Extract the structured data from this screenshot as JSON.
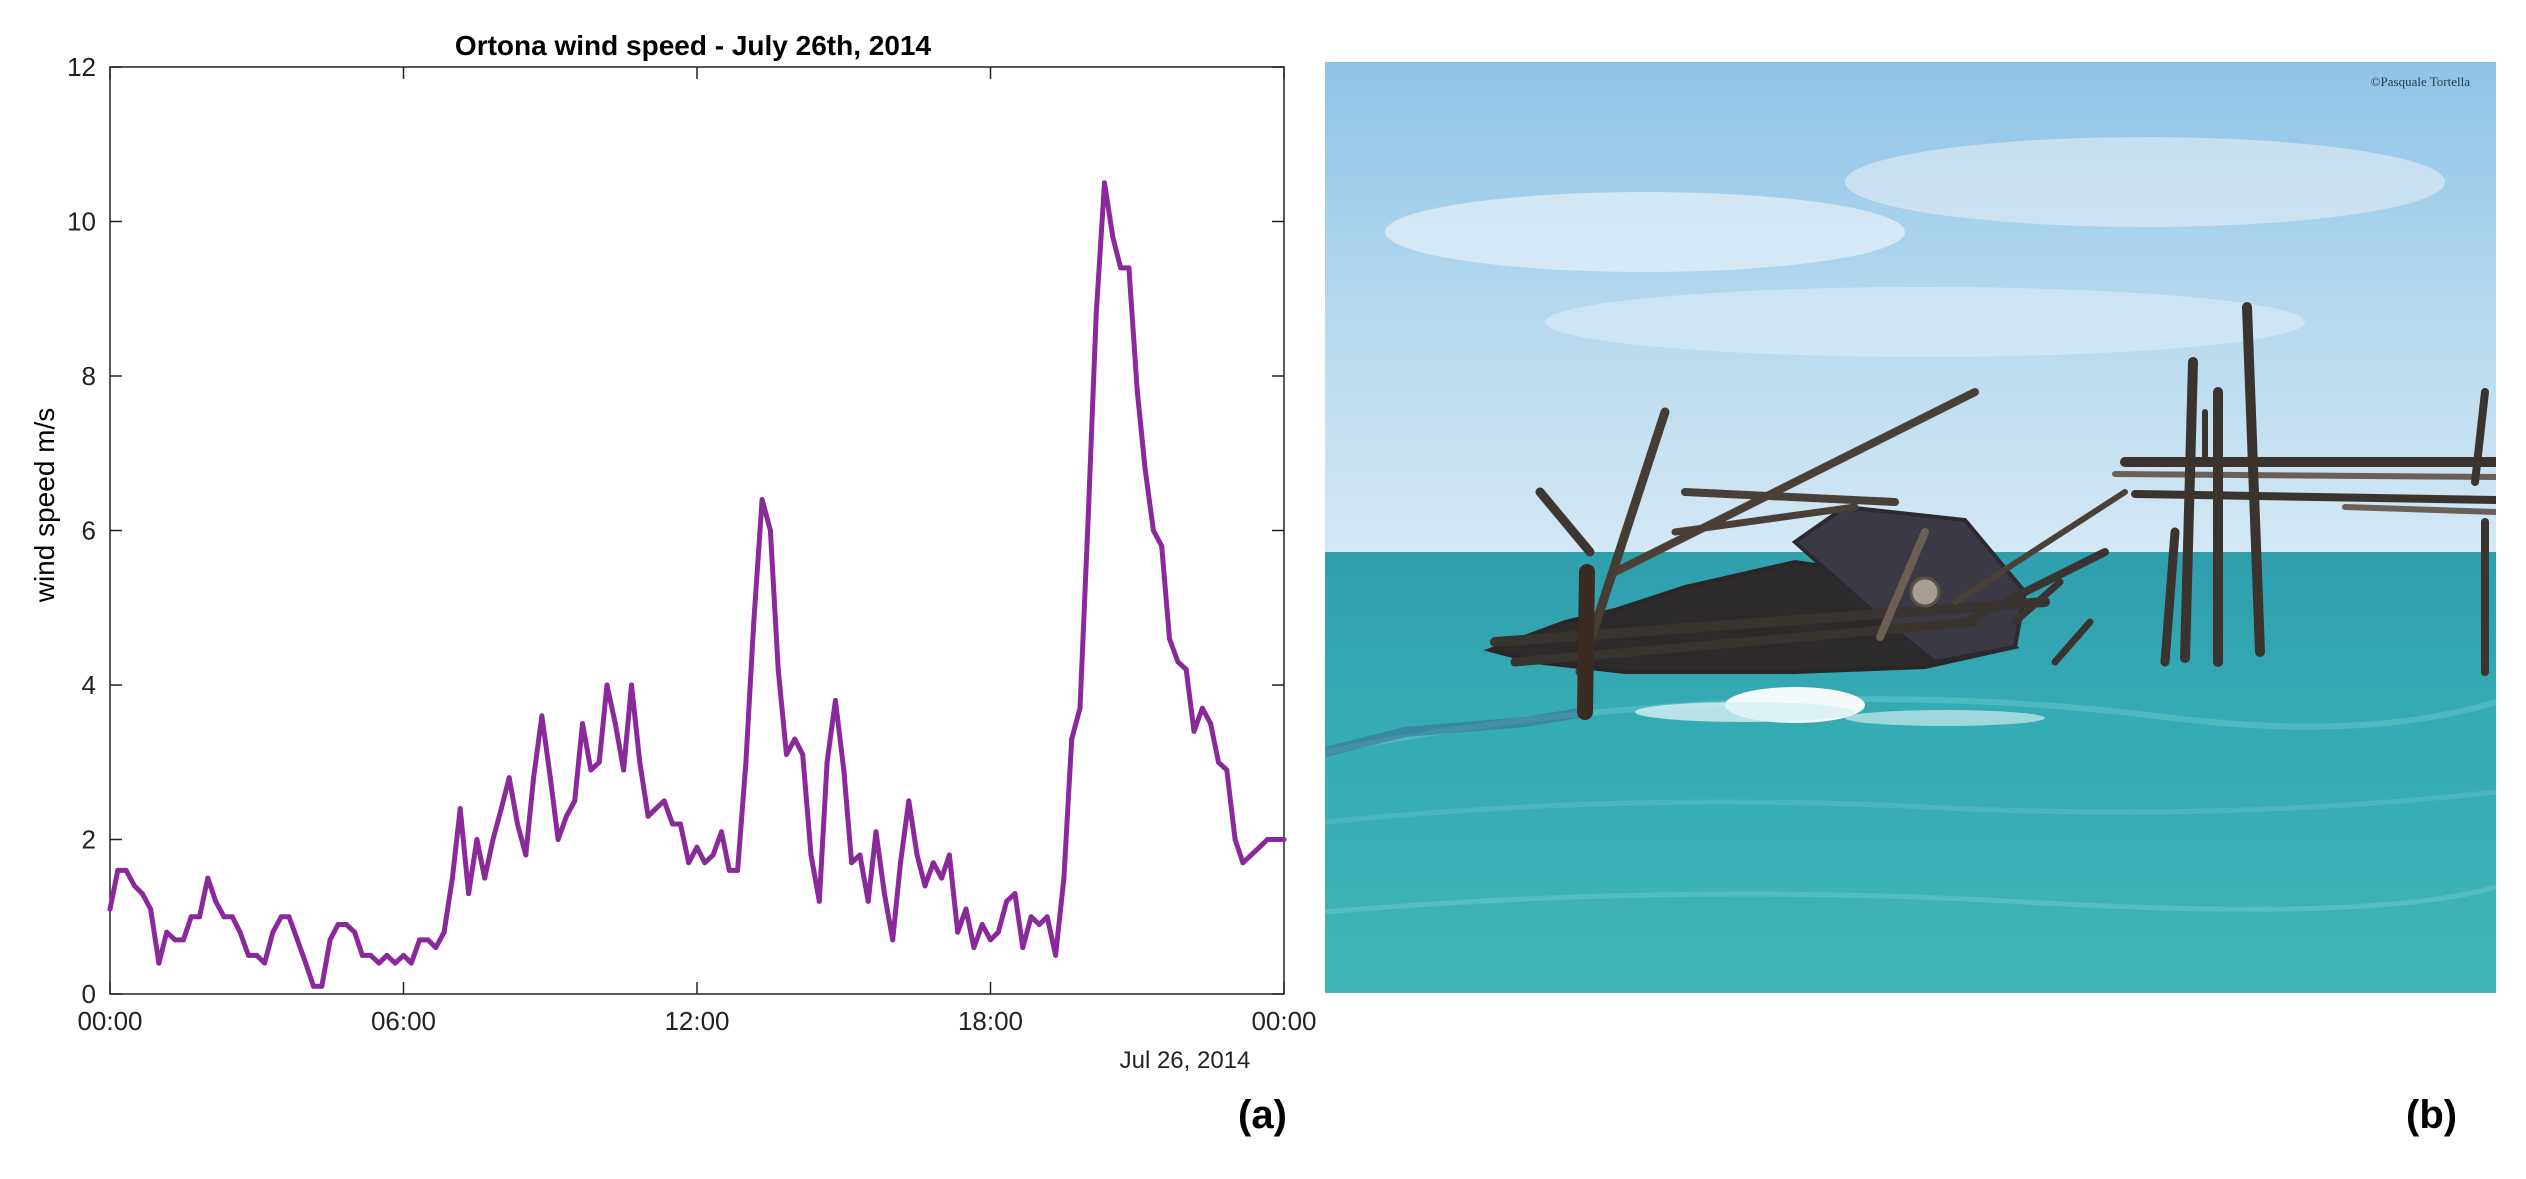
{
  "chart_data": {
    "type": "line",
    "title": "Ortona wind speed - July 26th, 2014",
    "xlabel": "",
    "ylabel": "wind speed m/s",
    "x_ticks": [
      "00:00",
      "06:00",
      "12:00",
      "18:00",
      "00:00"
    ],
    "x_date_label": "Jul 26, 2014",
    "xlim_hours": [
      0,
      24
    ],
    "ylim": [
      0,
      12
    ],
    "y_ticks": [
      0,
      2,
      4,
      6,
      8,
      10,
      12
    ],
    "grid": false,
    "series": [
      {
        "color": "#8a2a9a",
        "points": [
          [
            0,
            1.1
          ],
          [
            0.16,
            1.6
          ],
          [
            0.33,
            1.6
          ],
          [
            0.5,
            1.4
          ],
          [
            0.66,
            1.3
          ],
          [
            0.83,
            1.1
          ],
          [
            1,
            0.4
          ],
          [
            1.16,
            0.8
          ],
          [
            1.33,
            0.7
          ],
          [
            1.5,
            0.7
          ],
          [
            1.66,
            1.0
          ],
          [
            1.83,
            1.0
          ],
          [
            2,
            1.5
          ],
          [
            2.16,
            1.2
          ],
          [
            2.33,
            1.0
          ],
          [
            2.5,
            1.0
          ],
          [
            2.66,
            0.8
          ],
          [
            2.83,
            0.5
          ],
          [
            3,
            0.5
          ],
          [
            3.16,
            0.4
          ],
          [
            3.33,
            0.8
          ],
          [
            3.5,
            1.0
          ],
          [
            3.66,
            1.0
          ],
          [
            3.83,
            0.7
          ],
          [
            4,
            0.4
          ],
          [
            4.16,
            0.1
          ],
          [
            4.33,
            0.1
          ],
          [
            4.5,
            0.7
          ],
          [
            4.66,
            0.9
          ],
          [
            4.83,
            0.9
          ],
          [
            5,
            0.8
          ],
          [
            5.16,
            0.5
          ],
          [
            5.33,
            0.5
          ],
          [
            5.5,
            0.4
          ],
          [
            5.66,
            0.5
          ],
          [
            5.83,
            0.4
          ],
          [
            6,
            0.5
          ],
          [
            6.16,
            0.4
          ],
          [
            6.33,
            0.7
          ],
          [
            6.5,
            0.7
          ],
          [
            6.66,
            0.6
          ],
          [
            6.83,
            0.8
          ],
          [
            7,
            1.5
          ],
          [
            7.16,
            2.4
          ],
          [
            7.33,
            1.3
          ],
          [
            7.5,
            2.0
          ],
          [
            7.66,
            1.5
          ],
          [
            7.83,
            2.0
          ],
          [
            8,
            2.4
          ],
          [
            8.16,
            2.8
          ],
          [
            8.33,
            2.2
          ],
          [
            8.5,
            1.8
          ],
          [
            8.66,
            2.8
          ],
          [
            8.83,
            3.6
          ],
          [
            9,
            2.8
          ],
          [
            9.16,
            2.0
          ],
          [
            9.33,
            2.3
          ],
          [
            9.5,
            2.5
          ],
          [
            9.66,
            3.5
          ],
          [
            9.83,
            2.9
          ],
          [
            10,
            3.0
          ],
          [
            10.16,
            4.0
          ],
          [
            10.33,
            3.5
          ],
          [
            10.5,
            2.9
          ],
          [
            10.66,
            4.0
          ],
          [
            10.83,
            3.0
          ],
          [
            11,
            2.3
          ],
          [
            11.16,
            2.4
          ],
          [
            11.33,
            2.5
          ],
          [
            11.5,
            2.2
          ],
          [
            11.66,
            2.2
          ],
          [
            11.83,
            1.7
          ],
          [
            12,
            1.9
          ],
          [
            12.16,
            1.7
          ],
          [
            12.33,
            1.8
          ],
          [
            12.5,
            2.1
          ],
          [
            12.66,
            1.6
          ],
          [
            12.83,
            1.6
          ],
          [
            13,
            3.0
          ],
          [
            13.16,
            4.8
          ],
          [
            13.33,
            6.4
          ],
          [
            13.5,
            6.0
          ],
          [
            13.66,
            4.2
          ],
          [
            13.83,
            3.1
          ],
          [
            14,
            3.3
          ],
          [
            14.16,
            3.1
          ],
          [
            14.33,
            1.8
          ],
          [
            14.5,
            1.2
          ],
          [
            14.66,
            3.0
          ],
          [
            14.83,
            3.8
          ],
          [
            15,
            2.9
          ],
          [
            15.16,
            1.7
          ],
          [
            15.33,
            1.8
          ],
          [
            15.5,
            1.2
          ],
          [
            15.66,
            2.1
          ],
          [
            15.83,
            1.3
          ],
          [
            16,
            0.7
          ],
          [
            16.16,
            1.7
          ],
          [
            16.33,
            2.5
          ],
          [
            16.5,
            1.8
          ],
          [
            16.66,
            1.4
          ],
          [
            16.83,
            1.7
          ],
          [
            17,
            1.5
          ],
          [
            17.16,
            1.8
          ],
          [
            17.33,
            0.8
          ],
          [
            17.5,
            1.1
          ],
          [
            17.66,
            0.6
          ],
          [
            17.83,
            0.9
          ],
          [
            18,
            0.7
          ],
          [
            18.16,
            0.8
          ],
          [
            18.33,
            1.2
          ],
          [
            18.5,
            1.3
          ],
          [
            18.66,
            0.6
          ],
          [
            18.83,
            1.0
          ],
          [
            19,
            0.9
          ],
          [
            19.16,
            1.0
          ],
          [
            19.33,
            0.5
          ],
          [
            19.5,
            1.5
          ],
          [
            19.66,
            3.3
          ],
          [
            19.83,
            3.7
          ],
          [
            20,
            6.2
          ],
          [
            20.16,
            8.8
          ],
          [
            20.33,
            10.5
          ],
          [
            20.5,
            9.8
          ],
          [
            20.66,
            9.4
          ],
          [
            20.83,
            9.4
          ],
          [
            21,
            7.8
          ],
          [
            21.16,
            6.8
          ],
          [
            21.33,
            6.0
          ],
          [
            21.5,
            5.8
          ],
          [
            21.66,
            4.6
          ],
          [
            21.83,
            4.3
          ],
          [
            22,
            4.2
          ],
          [
            22.16,
            3.4
          ],
          [
            22.33,
            3.7
          ],
          [
            22.5,
            3.5
          ],
          [
            22.66,
            3.0
          ],
          [
            22.83,
            2.9
          ],
          [
            23,
            2.0
          ],
          [
            23.16,
            1.7
          ],
          [
            23.33,
            1.8
          ],
          [
            23.5,
            1.9
          ],
          [
            23.66,
            2.0
          ],
          [
            24,
            2.0
          ]
        ]
      }
    ]
  },
  "labels": {
    "panel_a": "(a)",
    "panel_b": "(b)",
    "photo_credit": "©Pasquale Tortella"
  }
}
